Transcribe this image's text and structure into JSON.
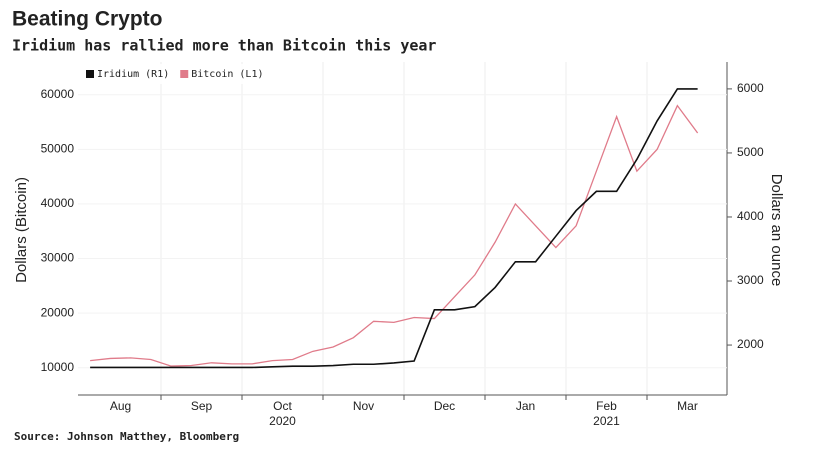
{
  "chart_data": {
    "type": "line",
    "title": "Beating Crypto",
    "subtitle": "Iridium has rallied more than Bitcoin this year",
    "source": "Source: Johnson Matthey, Bloomberg",
    "ylabel": "Dollars (Bitcoin)",
    "y2label": "Dollars an ounce",
    "categories": [
      null,
      "Aug",
      null,
      null,
      null,
      "Sep",
      null,
      null,
      null,
      "Oct",
      null,
      null,
      null,
      "Nov",
      null,
      null,
      null,
      "Dec",
      null,
      null,
      null,
      "Jan",
      null,
      null,
      null,
      "Feb",
      null,
      null,
      null,
      "Mar",
      null
    ],
    "years": [
      null,
      null,
      null,
      null,
      null,
      null,
      null,
      null,
      null,
      "2020",
      null,
      null,
      null,
      null,
      null,
      null,
      null,
      null,
      null,
      null,
      null,
      null,
      null,
      null,
      null,
      "2021",
      null,
      null,
      null,
      null,
      null
    ],
    "series": [
      {
        "name": "Iridium (R1)",
        "color": "#111111",
        "axis": "y2",
        "values": [
          1650,
          1650,
          1650,
          1650,
          1650,
          1650,
          1650,
          1650,
          1650,
          1660,
          1670,
          1670,
          1680,
          1700,
          1700,
          1720,
          1750,
          2550,
          2550,
          2600,
          2900,
          3300,
          3300,
          3700,
          4100,
          4400,
          4400,
          4900,
          5500,
          6000,
          6000
        ]
      },
      {
        "name": "Bitcoin (L1)",
        "color": "#e07b8a",
        "values": [
          11300,
          11700,
          11800,
          11500,
          10300,
          10400,
          10900,
          10700,
          10700,
          11300,
          11500,
          13000,
          13800,
          15500,
          18500,
          18300,
          19200,
          19000,
          23000,
          27000,
          33000,
          40000,
          36000,
          32000,
          36000,
          46000,
          56000,
          46000,
          50000,
          58000,
          53000
        ]
      }
    ],
    "ylim": [
      5000,
      66000
    ],
    "yticks": [
      10000,
      20000,
      30000,
      40000,
      50000,
      60000
    ],
    "y2lim": [
      1220,
      6420
    ],
    "y2ticks": [
      2000,
      3000,
      4000,
      5000,
      6000
    ],
    "grid": true,
    "legend": "top-left"
  }
}
